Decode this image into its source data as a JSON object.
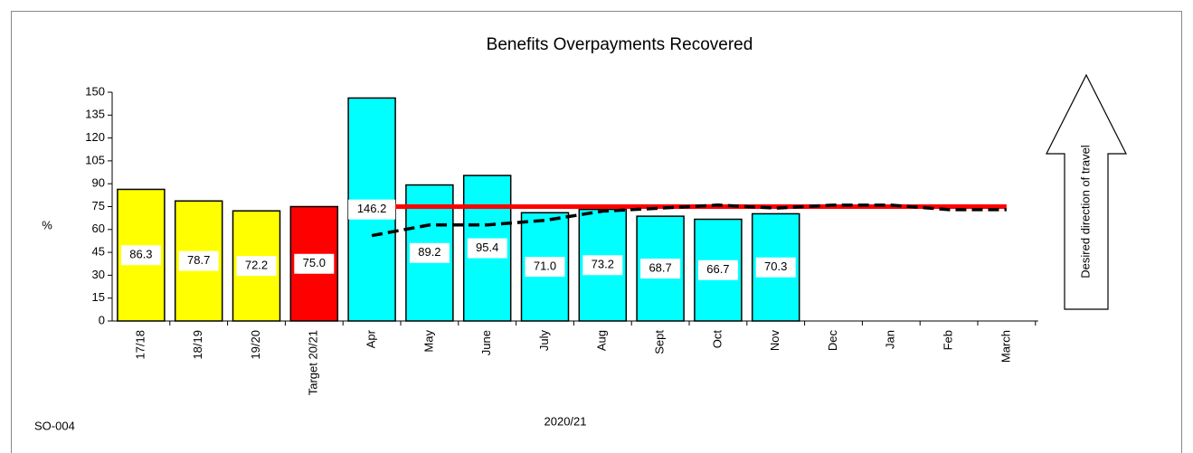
{
  "chart_data": {
    "type": "bar",
    "title": "Benefits Overpayments Recovered",
    "y_label": "%",
    "x_label": "2020/21",
    "footnote": "SO-004",
    "annotation": "Desired direction of travel",
    "categories": [
      "17/18",
      "18/19",
      "19/20",
      "Target 20/21",
      "Apr",
      "May",
      "June",
      "July",
      "Aug",
      "Sept",
      "Oct",
      "Nov",
      "Dec",
      "Jan",
      "Feb",
      "March"
    ],
    "values": [
      86.3,
      78.7,
      72.2,
      75.0,
      146.2,
      89.2,
      95.4,
      71.0,
      73.2,
      68.7,
      66.7,
      70.3,
      null,
      null,
      null,
      null
    ],
    "value_labels": [
      "86.3",
      "78.7",
      "72.2",
      "75.0",
      "146.2",
      "89.2",
      "95.4",
      "71.0",
      "73.2",
      "68.7",
      "66.7",
      "70.3",
      null,
      null,
      null,
      null
    ],
    "colors": [
      "#ffff00",
      "#ffff00",
      "#ffff00",
      "#ff0000",
      "#00ffff",
      "#00ffff",
      "#00ffff",
      "#00ffff",
      "#00ffff",
      "#00ffff",
      "#00ffff",
      "#00ffff",
      null,
      null,
      null,
      null
    ],
    "target_line": {
      "color": "#ff0000",
      "values": [
        null,
        null,
        null,
        null,
        75,
        75,
        75,
        75,
        75,
        75,
        75,
        75,
        75,
        75,
        75,
        75
      ]
    },
    "trend_line": {
      "color": "#000000",
      "values": [
        null,
        null,
        null,
        null,
        56,
        63,
        63,
        66,
        72,
        74,
        76,
        74,
        76,
        76,
        73,
        73
      ]
    },
    "ylim": [
      0,
      150
    ],
    "yticks": [
      0,
      15,
      30,
      45,
      60,
      75,
      90,
      105,
      120,
      135,
      150
    ]
  }
}
